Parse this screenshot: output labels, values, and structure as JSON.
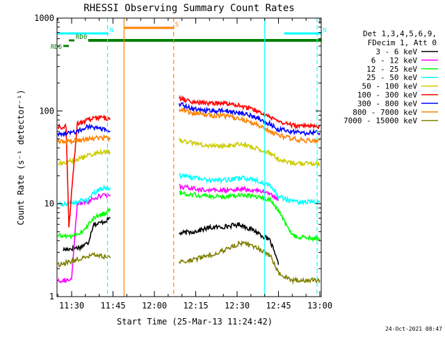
{
  "chart_data": {
    "type": "line",
    "title": "RHESSI Observing Summary Count Rates",
    "xlabel": "Start Time (25-Mar-13 11:24:42)",
    "ylabel": "Count Rate (s⁻¹ detector⁻¹)",
    "y_scale": "log",
    "ylim": [
      1,
      1000
    ],
    "xlim": [
      "11:24:42",
      "13:00:30"
    ],
    "grid": false,
    "x_ticks": [
      "11:30",
      "11:45",
      "12:00",
      "12:15",
      "12:30",
      "12:45",
      "13:00"
    ],
    "y_ticks": [
      "1",
      "10",
      "100",
      "1000"
    ],
    "legend": {
      "position": "right",
      "header": [
        "Det 1,3,4,5,6,9,",
        "FDecim 1, Att 0"
      ]
    },
    "series": [
      {
        "name": "3 - 6 keV",
        "color": "#000000",
        "segments": [
          {
            "x": [
              "11:27",
              "11:33",
              "11:36",
              "11:38",
              "11:39",
              "11:42",
              "11:44"
            ],
            "y": [
              3.2,
              3.4,
              3.8,
              6.2,
              6.0,
              6.5,
              7.0
            ]
          },
          {
            "x": [
              "12:09",
              "12:14",
              "12:20",
              "12:26",
              "12:31",
              "12:37",
              "12:42",
              "12:45"
            ],
            "y": [
              4.8,
              5.0,
              5.5,
              5.7,
              6.0,
              5.0,
              4.0,
              2.2
            ]
          }
        ]
      },
      {
        "name": "6 - 12 keV",
        "color": "#ff00ff",
        "segments": [
          {
            "x": [
              "11:25",
              "11:30",
              "11:32",
              "11:36",
              "11:38",
              "11:42",
              "11:44"
            ],
            "y": [
              1.5,
              1.5,
              10,
              10.5,
              11.5,
              12.5,
              12.0
            ]
          },
          {
            "x": [
              "12:09",
              "12:14",
              "12:20",
              "12:26",
              "12:31",
              "12:37",
              "12:42",
              "12:45"
            ],
            "y": [
              15.5,
              14.5,
              14.0,
              14.0,
              14.5,
              14.0,
              13.0,
              11.0
            ]
          }
        ]
      },
      {
        "name": "12 - 25 keV",
        "color": "#00ff00",
        "segments": [
          {
            "x": [
              "11:25",
              "11:30",
              "11:34",
              "11:38",
              "11:42",
              "11:44"
            ],
            "y": [
              4.5,
              4.5,
              5.0,
              7.0,
              8.0,
              8.5
            ]
          },
          {
            "x": [
              "12:09",
              "12:14",
              "12:20",
              "12:26",
              "12:31",
              "12:37",
              "12:42",
              "12:45",
              "12:50",
              "12:55",
              "13:00"
            ],
            "y": [
              13.0,
              12.5,
              12.0,
              12.0,
              12.5,
              12.0,
              11.0,
              8.5,
              4.5,
              4.3,
              4.2
            ]
          }
        ]
      },
      {
        "name": "25 - 50 keV",
        "color": "#00ffff",
        "segments": [
          {
            "x": [
              "11:25",
              "11:28",
              "11:32",
              "11:36",
              "11:38",
              "11:42",
              "11:44"
            ],
            "y": [
              10.0,
              10.0,
              10.5,
              11.0,
              13.0,
              15.0,
              15.0
            ]
          },
          {
            "x": [
              "12:09",
              "12:14",
              "12:20",
              "12:26",
              "12:31",
              "12:37",
              "12:42",
              "12:45",
              "12:50",
              "12:55",
              "13:00"
            ],
            "y": [
              20.0,
              19.0,
              18.0,
              18.0,
              19.0,
              18.0,
              16.0,
              12.0,
              10.5,
              10.5,
              10.3
            ]
          }
        ]
      },
      {
        "name": "50 - 100 keV",
        "color": "#cccc00",
        "segments": [
          {
            "x": [
              "11:25",
              "11:28",
              "11:32",
              "11:36",
              "11:40",
              "11:44"
            ],
            "y": [
              27,
              28,
              30,
              33,
              36,
              36
            ]
          },
          {
            "x": [
              "12:09",
              "12:14",
              "12:20",
              "12:26",
              "12:31",
              "12:37",
              "12:42",
              "12:45",
              "12:50",
              "12:55",
              "13:00"
            ],
            "y": [
              48,
              45,
              42,
              42,
              44,
              40,
              35,
              30,
              27,
              27,
              27
            ]
          }
        ]
      },
      {
        "name": "100 - 300 keV",
        "color": "#ff0000",
        "segments": [
          {
            "x": [
              "11:25",
              "11:28",
              "11:29",
              "11:32",
              "11:36",
              "11:40",
              "11:44"
            ],
            "y": [
              67,
              68,
              5.5,
              72,
              80,
              85,
              83
            ]
          },
          {
            "x": [
              "12:09",
              "12:14",
              "12:20",
              "12:26",
              "12:31",
              "12:37",
              "12:42",
              "12:45",
              "12:50",
              "12:55",
              "13:00"
            ],
            "y": [
              135,
              125,
              120,
              120,
              115,
              100,
              85,
              75,
              70,
              68,
              68
            ]
          }
        ]
      },
      {
        "name": "300 - 800 keV",
        "color": "#0000ff",
        "segments": [
          {
            "x": [
              "11:25",
              "11:28",
              "11:32",
              "11:36",
              "11:40",
              "11:44"
            ],
            "y": [
              57,
              58,
              60,
              68,
              65,
              60
            ]
          },
          {
            "x": [
              "12:09",
              "12:14",
              "12:20",
              "12:26",
              "12:31",
              "12:37",
              "12:42",
              "12:45",
              "12:50",
              "12:55",
              "13:00"
            ],
            "y": [
              120,
              105,
              100,
              100,
              95,
              85,
              72,
              63,
              60,
              58,
              58
            ]
          }
        ]
      },
      {
        "name": "800 - 7000 keV",
        "color": "#ff8000",
        "segments": [
          {
            "x": [
              "11:25",
              "11:28",
              "11:32",
              "11:36",
              "11:40",
              "11:44"
            ],
            "y": [
              46,
              47,
              48,
              50,
              52,
              50
            ]
          },
          {
            "x": [
              "12:09",
              "12:14",
              "12:20",
              "12:26",
              "12:31",
              "12:37",
              "12:42",
              "12:45",
              "12:50",
              "12:55",
              "13:00"
            ],
            "y": [
              105,
              95,
              90,
              88,
              82,
              72,
              60,
              55,
              50,
              48,
              48
            ]
          }
        ]
      },
      {
        "name": "7000 - 15000 keV",
        "color": "#808000",
        "segments": [
          {
            "x": [
              "11:25",
              "11:30",
              "11:34",
              "11:38",
              "11:42",
              "11:44"
            ],
            "y": [
              2.2,
              2.4,
              2.6,
              2.8,
              2.7,
              2.6
            ]
          },
          {
            "x": [
              "12:09",
              "12:14",
              "12:20",
              "12:26",
              "12:31",
              "12:37",
              "12:42",
              "12:45",
              "12:50",
              "12:55",
              "13:00"
            ],
            "y": [
              2.4,
              2.5,
              2.8,
              3.2,
              3.8,
              3.4,
              2.8,
              1.8,
              1.5,
              1.5,
              1.5
            ]
          }
        ]
      }
    ],
    "flags": [
      {
        "name": "RD0",
        "color": "#008000",
        "x": [
          "11:29",
          "11:31"
        ]
      },
      {
        "name": "RD6",
        "color": "#008000",
        "x": [
          "11:27",
          "11:29"
        ]
      },
      {
        "name": "N",
        "color": "#00ffff",
        "x": [
          "11:24:42",
          "11:43:20"
        ]
      },
      {
        "name": "N",
        "color": "#00ffff",
        "x": [
          "12:47",
          "13:00:30"
        ]
      },
      {
        "name": "S",
        "color": "#ff8000",
        "x": [
          "11:49",
          "12:07"
        ]
      },
      {
        "name": "",
        "color": "#008000",
        "x": [
          "11:36",
          "13:00:30"
        ]
      }
    ],
    "event_lines": [
      {
        "x": "11:43",
        "color": "#00ffff",
        "style": "dashed"
      },
      {
        "x": "12:07",
        "color": "#ff8000",
        "style": "dashed"
      },
      {
        "x": "12:40",
        "color": "#00ffff",
        "style": "solid"
      },
      {
        "x": "12:59",
        "color": "#00ffff",
        "style": "dashed"
      },
      {
        "x": "11:49",
        "color": "#ff8000",
        "style": "solid"
      }
    ]
  },
  "footer": {
    "timestamp": "24-Oct-2021 08:47"
  }
}
